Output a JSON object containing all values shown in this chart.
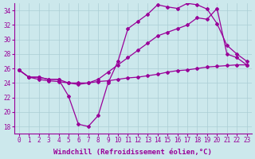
{
  "background_color": "#cce8ec",
  "grid_color": "#aacdd4",
  "line_color": "#990099",
  "marker": "D",
  "marker_size": 2.0,
  "line_width": 0.9,
  "xlabel": "Windchill (Refroidissement éolien,°C)",
  "xlabel_fontsize": 6.5,
  "tick_fontsize": 5.5,
  "xlim": [
    -0.5,
    23.5
  ],
  "ylim": [
    17,
    35
  ],
  "yticks": [
    18,
    20,
    22,
    24,
    26,
    28,
    30,
    32,
    34
  ],
  "xticks": [
    0,
    1,
    2,
    3,
    4,
    5,
    6,
    7,
    8,
    9,
    10,
    11,
    12,
    13,
    14,
    15,
    16,
    17,
    18,
    19,
    20,
    21,
    22,
    23
  ],
  "series": [
    {
      "x": [
        0,
        1,
        2,
        3,
        4,
        5,
        6,
        7,
        8,
        9,
        10,
        11,
        12,
        13,
        14,
        15,
        16,
        17,
        18,
        19,
        20,
        21,
        22,
        23
      ],
      "y": [
        25.8,
        24.8,
        24.8,
        24.5,
        24.5,
        22.2,
        18.3,
        18.0,
        19.5,
        24.0,
        27.0,
        31.5,
        32.5,
        33.5,
        34.8,
        34.5,
        34.3,
        35.0,
        34.8,
        34.2,
        32.2,
        29.2,
        28.0,
        27.0
      ]
    },
    {
      "x": [
        0,
        1,
        2,
        3,
        4,
        5,
        6,
        7,
        8,
        9,
        10,
        11,
        12,
        13,
        14,
        15,
        16,
        17,
        18,
        19,
        20,
        21,
        22,
        23
      ],
      "y": [
        25.8,
        24.8,
        24.8,
        24.5,
        24.5,
        24.0,
        23.8,
        24.0,
        24.5,
        25.5,
        26.5,
        27.5,
        28.5,
        29.5,
        30.5,
        31.0,
        31.5,
        32.0,
        33.0,
        32.8,
        34.3,
        28.0,
        27.5,
        26.5
      ]
    },
    {
      "x": [
        0,
        1,
        2,
        3,
        4,
        5,
        6,
        7,
        8,
        9,
        10,
        11,
        12,
        13,
        14,
        15,
        16,
        17,
        18,
        19,
        20,
        21,
        22,
        23
      ],
      "y": [
        25.8,
        24.8,
        24.5,
        24.3,
        24.2,
        24.0,
        24.0,
        24.0,
        24.2,
        24.3,
        24.5,
        24.7,
        24.8,
        25.0,
        25.2,
        25.5,
        25.7,
        25.8,
        26.0,
        26.2,
        26.3,
        26.4,
        26.5,
        26.5
      ]
    }
  ]
}
